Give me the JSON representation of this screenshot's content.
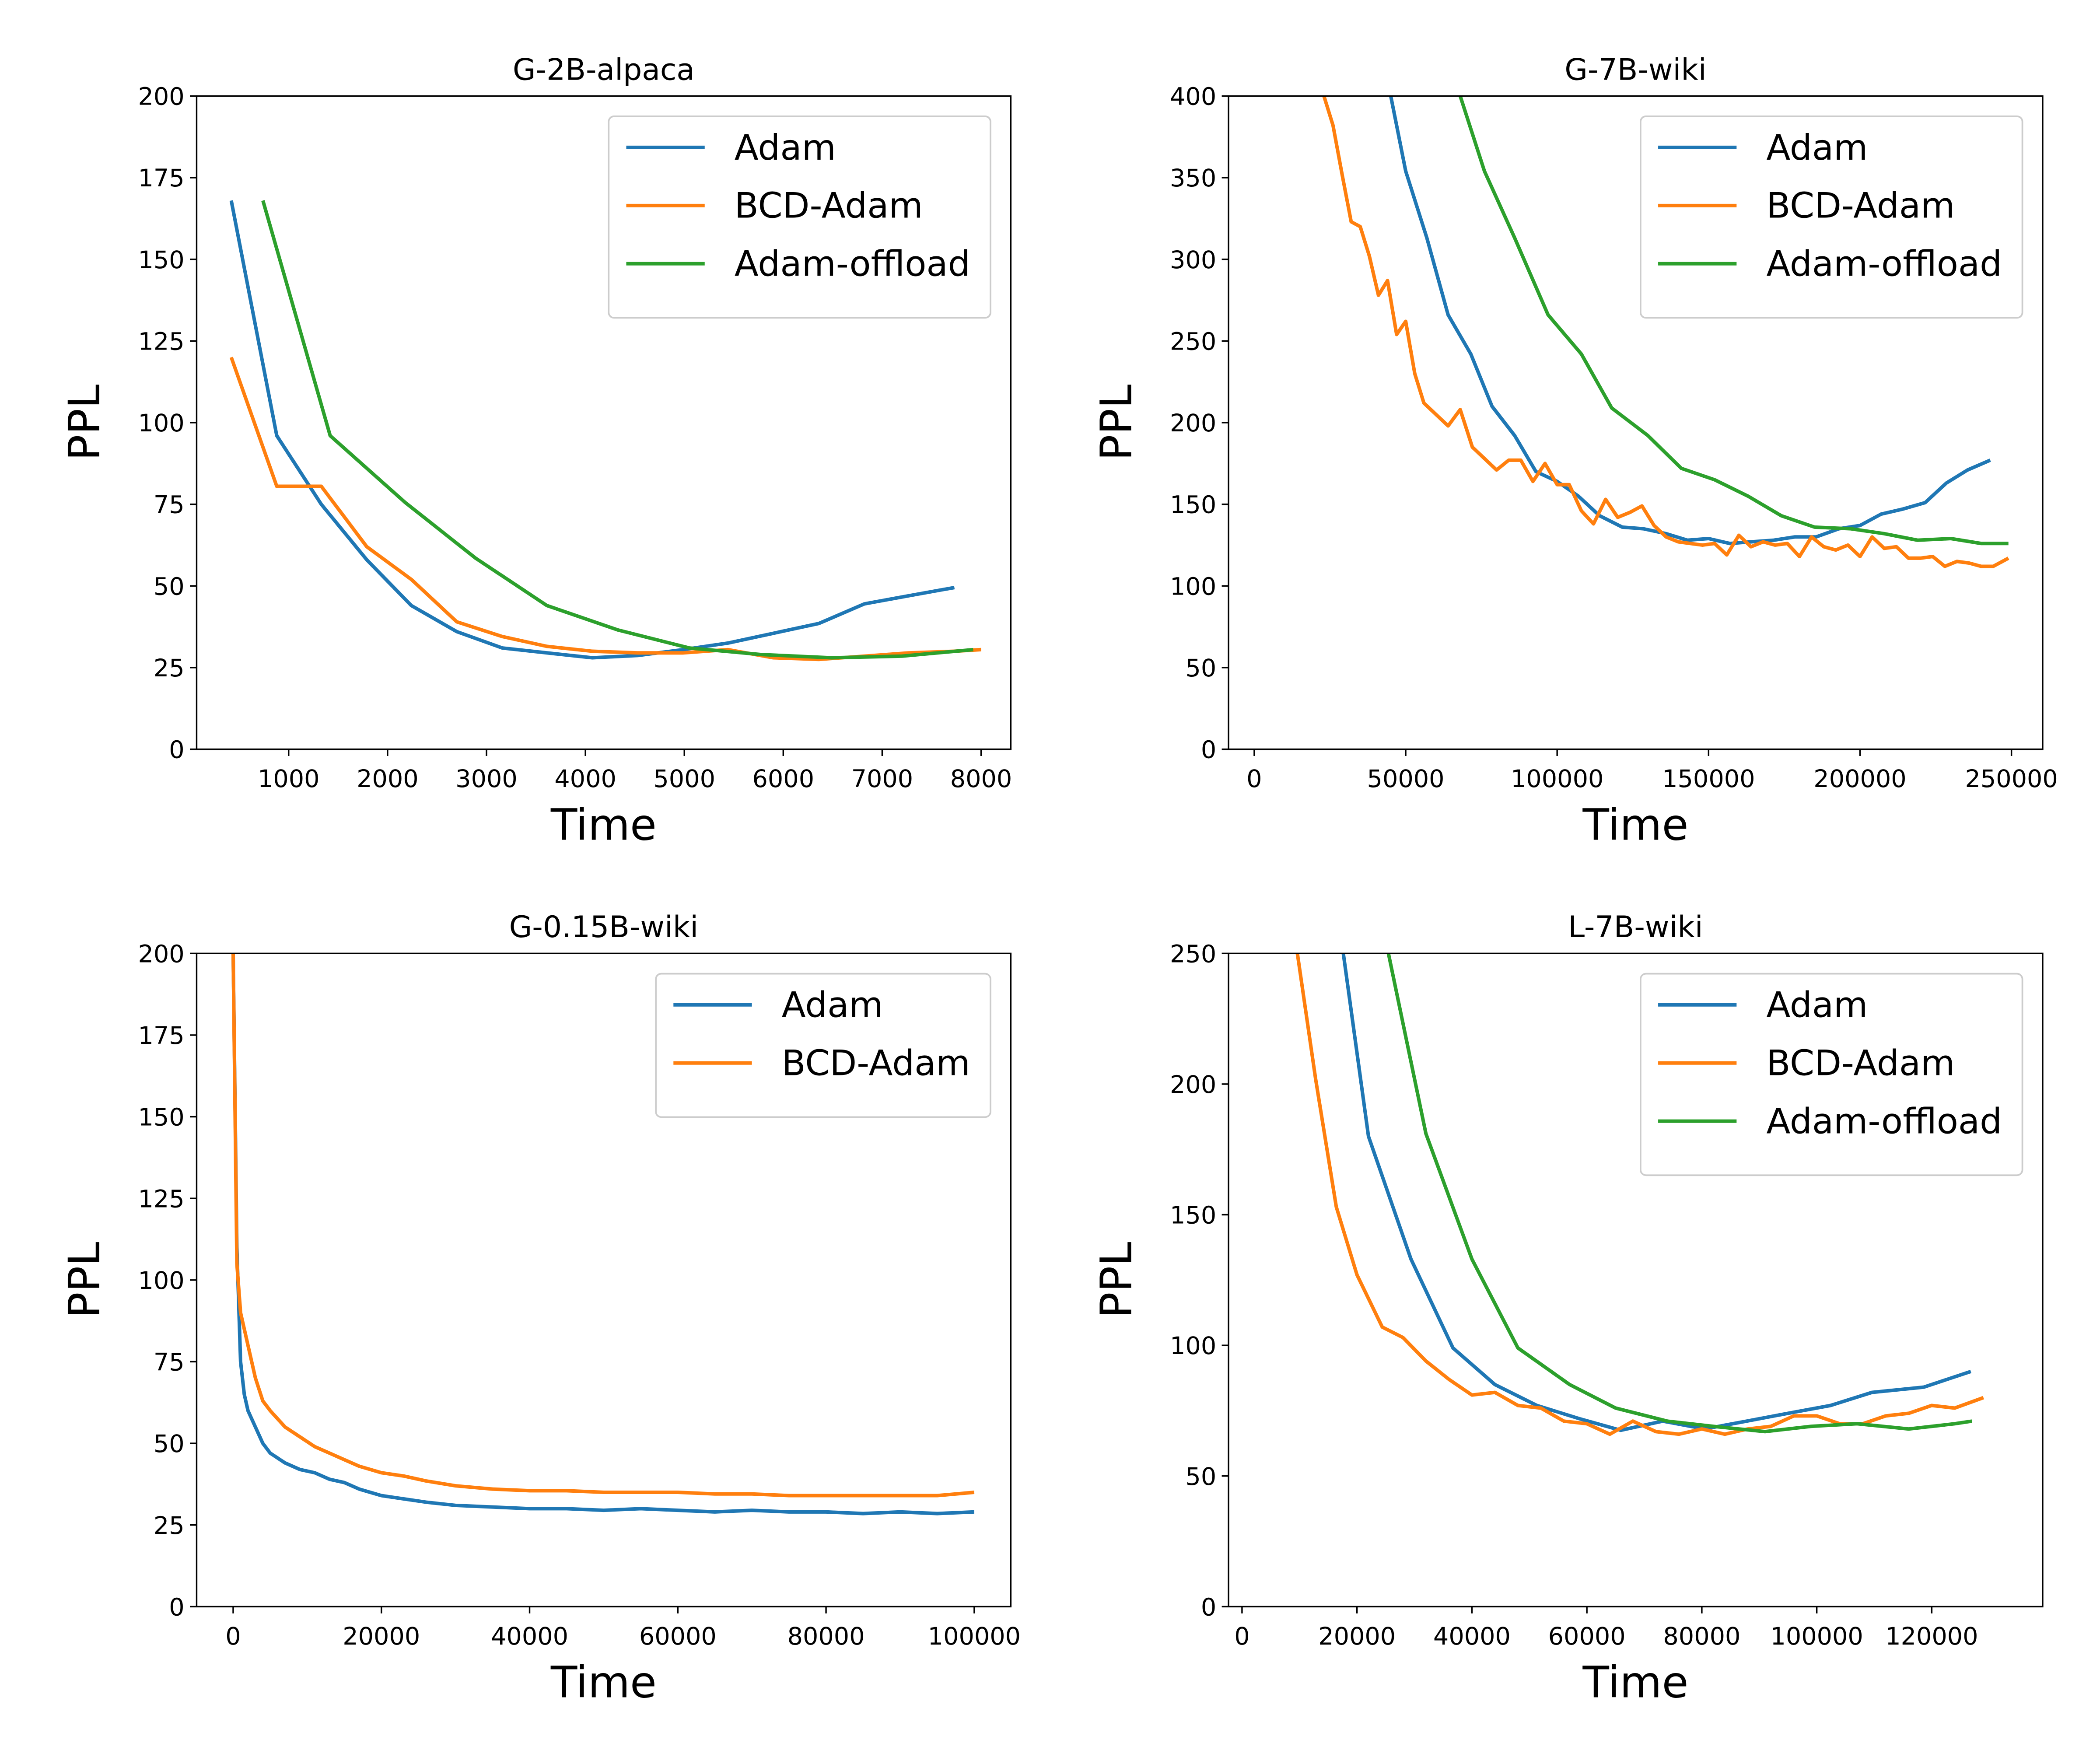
{
  "chart_data": [
    {
      "type": "line",
      "title": "G-2B-alpaca",
      "xlabel": "Time",
      "ylabel": "PPL",
      "legend": "upper right",
      "xlim": [
        70,
        8300
      ],
      "ylim": [
        0,
        200
      ],
      "xticks": [
        1000,
        2000,
        3000,
        4000,
        5000,
        6000,
        7000,
        8000
      ],
      "yticks": [
        0,
        25,
        50,
        75,
        100,
        125,
        150,
        175,
        200
      ],
      "series": [
        {
          "name": "Adam",
          "color": "#1f77b4",
          "x": [
            420,
            880,
            1330,
            1790,
            2240,
            2700,
            3160,
            3610,
            4070,
            4530,
            4990,
            5440,
            5900,
            6360,
            6820,
            7270,
            7730
          ],
          "values": [
            168,
            96,
            75,
            58,
            44,
            36,
            31,
            29.5,
            28,
            28.7,
            30.5,
            32.5,
            35.5,
            38.5,
            44.5,
            47,
            49.5
          ]
        },
        {
          "name": "BCD-Adam",
          "color": "#ff7f0e",
          "x": [
            420,
            880,
            1330,
            1790,
            2240,
            2700,
            3160,
            3610,
            4070,
            4530,
            4990,
            5440,
            5900,
            6360,
            6820,
            7270,
            7730,
            8000
          ],
          "values": [
            120,
            80.5,
            80.5,
            62,
            52,
            39,
            34.5,
            31.5,
            30,
            29.5,
            29.5,
            30.5,
            28,
            27.5,
            28.5,
            29.5,
            30,
            30.5
          ]
        },
        {
          "name": "Adam-offload",
          "color": "#2ca02c",
          "x": [
            740,
            1420,
            2180,
            2890,
            3610,
            4330,
            5050,
            5770,
            6490,
            7200,
            7920
          ],
          "values": [
            168,
            96,
            75.5,
            58.5,
            44,
            36.5,
            31,
            29,
            28,
            28.5,
            30.5
          ]
        }
      ]
    },
    {
      "type": "line",
      "title": "G-7B-wiki",
      "xlabel": "Time",
      "ylabel": "PPL",
      "legend": "upper right",
      "xlim": [
        -8500,
        260300
      ],
      "ylim": [
        0,
        400
      ],
      "xticks": [
        0,
        50000,
        100000,
        150000,
        200000,
        250000
      ],
      "yticks": [
        0,
        50,
        100,
        150,
        200,
        250,
        300,
        350,
        400
      ],
      "series": [
        {
          "name": "Adam",
          "color": "#1f77b4",
          "x": [
            44000,
            50000,
            57000,
            64000,
            71500,
            78500,
            86000,
            93000,
            100000,
            107000,
            114000,
            121500,
            128500,
            136000,
            143000,
            150000,
            157000,
            164000,
            171500,
            178500,
            185500,
            193000,
            200000,
            207000,
            214000,
            221500,
            228500,
            235500,
            243000
          ],
          "values": [
            410,
            354,
            313,
            266,
            242,
            210,
            192,
            170,
            164,
            155,
            143,
            136,
            135,
            132,
            128,
            129,
            126,
            127,
            128,
            130,
            130,
            135,
            137,
            144,
            147,
            151,
            163,
            171,
            177
          ]
        },
        {
          "name": "BCD-Adam",
          "color": "#ff7f0e",
          "x": [
            23000,
            26000,
            29000,
            32000,
            35000,
            38000,
            41000,
            44000,
            47000,
            50000,
            53000,
            56000,
            60000,
            64000,
            68000,
            72000,
            76000,
            80000,
            84000,
            88000,
            92000,
            96000,
            100000,
            104000,
            108000,
            112000,
            116000,
            120000,
            124000,
            128000,
            132000,
            136000,
            140000,
            144000,
            148000,
            152000,
            156000,
            160000,
            164000,
            168000,
            172000,
            176000,
            180000,
            184000,
            188000,
            192000,
            196000,
            200000,
            204000,
            208000,
            212000,
            216000,
            220000,
            224000,
            228000,
            232000,
            236000,
            240000,
            244000,
            249000
          ],
          "values": [
            400,
            382,
            352,
            323,
            320,
            302,
            278,
            287,
            254,
            262,
            230,
            212,
            205,
            198,
            208,
            185,
            178,
            171,
            177,
            177,
            164,
            175,
            162,
            162,
            146,
            138,
            153,
            142,
            145,
            149,
            137,
            130,
            127,
            126,
            125,
            126,
            119,
            131,
            124,
            127,
            125,
            126,
            118,
            130,
            124,
            122,
            125,
            118,
            130,
            123,
            124,
            117,
            117,
            118,
            112,
            115,
            114,
            112,
            112,
            117
          ]
        },
        {
          "name": "Adam-offload",
          "color": "#2ca02c",
          "x": [
            68000,
            76000,
            86000,
            97000,
            108000,
            118000,
            130000,
            141000,
            152000,
            163000,
            174000,
            185000,
            197000,
            208000,
            219000,
            230000,
            240000,
            249000
          ],
          "values": [
            400,
            354,
            313,
            266,
            242,
            209,
            192,
            172,
            165,
            155,
            143,
            136,
            135,
            132,
            128,
            129,
            126,
            126
          ]
        }
      ]
    },
    {
      "type": "line",
      "title": "G-0.15B-wiki",
      "xlabel": "Time",
      "ylabel": "PPL",
      "legend": "upper right",
      "xlim": [
        -4930,
        104930
      ],
      "ylim": [
        0,
        200
      ],
      "xticks": [
        0,
        20000,
        40000,
        60000,
        80000,
        100000
      ],
      "yticks": [
        0,
        25,
        50,
        75,
        100,
        125,
        150,
        175,
        200
      ],
      "series": [
        {
          "name": "Adam",
          "color": "#1f77b4",
          "x": [
            0,
            500,
            1000,
            1500,
            2000,
            3000,
            4000,
            5000,
            7000,
            9000,
            11000,
            13000,
            15000,
            17000,
            20000,
            23000,
            26000,
            30000,
            35000,
            40000,
            45000,
            50000,
            55000,
            60000,
            65000,
            70000,
            75000,
            80000,
            85000,
            90000,
            95000,
            100000
          ],
          "values": [
            200,
            110,
            75,
            65,
            60,
            55,
            50,
            47,
            44,
            42,
            41,
            39,
            38,
            36,
            34,
            33,
            32,
            31,
            30.5,
            30,
            30,
            29.5,
            30,
            29.5,
            29,
            29.5,
            29,
            29,
            28.5,
            29,
            28.5,
            29
          ]
        },
        {
          "name": "BCD-Adam",
          "color": "#ff7f0e",
          "x": [
            0,
            500,
            1000,
            1500,
            2000,
            3000,
            4000,
            5000,
            7000,
            9000,
            11000,
            13000,
            15000,
            17000,
            20000,
            23000,
            26000,
            30000,
            35000,
            40000,
            45000,
            50000,
            55000,
            60000,
            65000,
            70000,
            75000,
            80000,
            85000,
            90000,
            95000,
            100000
          ],
          "values": [
            200,
            105,
            90,
            85,
            80,
            70,
            63,
            60,
            55,
            52,
            49,
            47,
            45,
            43,
            41,
            40,
            38.5,
            37,
            36,
            35.5,
            35.5,
            35,
            35,
            35,
            34.5,
            34.5,
            34,
            34,
            34,
            34,
            34,
            35
          ]
        }
      ]
    },
    {
      "type": "line",
      "title": "L-7B-wiki",
      "xlabel": "Time",
      "ylabel": "PPL",
      "legend": "upper right",
      "xlim": [
        -2350,
        139300
      ],
      "ylim": [
        0,
        250
      ],
      "xticks": [
        0,
        20000,
        40000,
        60000,
        80000,
        100000,
        120000
      ],
      "yticks": [
        0,
        50,
        100,
        150,
        200,
        250
      ],
      "series": [
        {
          "name": "Adam",
          "color": "#1f77b4",
          "x": [
            17500,
            22000,
            29400,
            36700,
            44000,
            51300,
            58600,
            65900,
            73200,
            80500,
            87800,
            95000,
            102400,
            109600,
            118600,
            126800
          ],
          "values": [
            252,
            180,
            133,
            99,
            85,
            77,
            72,
            67.5,
            71,
            68,
            71,
            74,
            77,
            82,
            84,
            90
          ]
        },
        {
          "name": "BCD-Adam",
          "color": "#ff7f0e",
          "x": [
            9500,
            12800,
            16400,
            20000,
            24400,
            28000,
            32000,
            36000,
            40000,
            44000,
            48000,
            52000,
            56000,
            60000,
            64000,
            68000,
            72000,
            76000,
            80000,
            84000,
            88000,
            92000,
            96000,
            100000,
            104000,
            108000,
            112000,
            116000,
            120000,
            124000,
            129000
          ],
          "values": [
            252,
            202,
            153,
            127,
            107,
            103,
            94,
            87,
            81,
            82,
            77,
            76,
            71,
            70,
            66,
            71,
            67,
            66,
            68,
            66,
            68,
            69,
            73,
            73,
            70,
            70,
            73,
            74,
            77,
            76,
            80
          ]
        },
        {
          "name": "Adam-offload",
          "color": "#2ca02c",
          "x": [
            25000,
            32000,
            40000,
            48000,
            57000,
            65000,
            74000,
            82000,
            91000,
            99000,
            107000,
            116000,
            124000,
            127000
          ],
          "values": [
            255,
            181,
            133,
            99,
            85,
            76,
            71,
            69,
            67,
            69,
            70,
            68,
            70,
            71
          ]
        }
      ]
    }
  ]
}
